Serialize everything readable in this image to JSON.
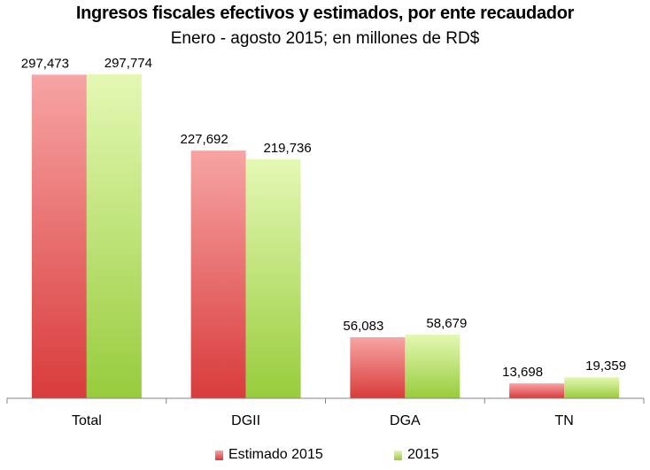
{
  "chart_data": {
    "type": "bar",
    "title": "Ingresos fiscales efectivos y estimados, por ente recaudador",
    "subtitle": "Enero - agosto 2015; en millones de RD$",
    "categories": [
      "Total",
      "DGII",
      "DGA",
      "TN"
    ],
    "series": [
      {
        "name": "Estimado 2015",
        "values": [
          297473,
          227692,
          56083,
          13698
        ],
        "labels": [
          "297,473",
          "227,692",
          "56,083",
          "13,698"
        ],
        "color_top": "#f7a4a4",
        "color_bottom": "#d93b3b"
      },
      {
        "name": "2015",
        "values": [
          297774,
          219736,
          58679,
          19359
        ],
        "labels": [
          "297,774",
          "219,736",
          "58,679",
          "19,359"
        ],
        "color_top": "#e4f8b4",
        "color_bottom": "#98cc3c"
      }
    ],
    "ylim": [
      0,
      320000
    ],
    "grid": false,
    "legend_position": "bottom"
  }
}
